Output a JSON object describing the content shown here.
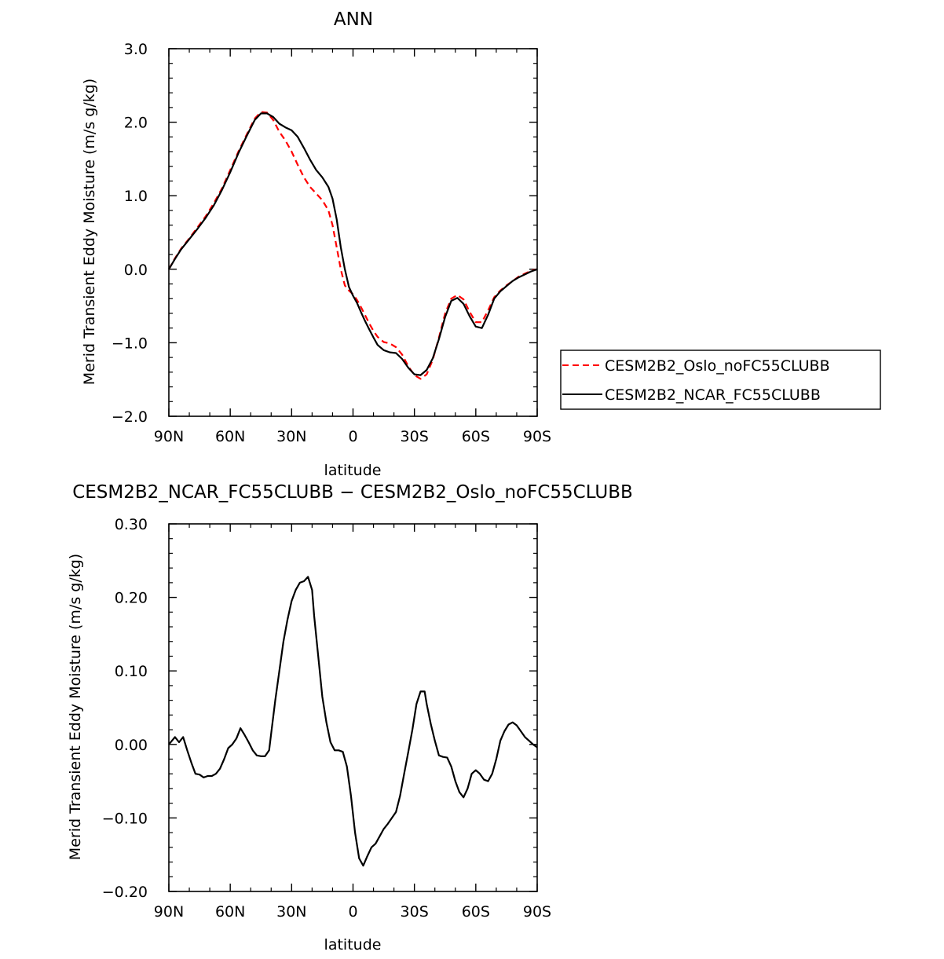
{
  "colors": {
    "series_oslo": "#ff0000",
    "series_ncar": "#000000",
    "axis": "#000000"
  },
  "chart_data": [
    {
      "type": "line",
      "title": "ANN",
      "xlabel": "latitude",
      "ylabel": "Merid Transient Eddy Moisture (m/s g/kg)",
      "xlim": [
        90,
        -90
      ],
      "ylim": [
        -2.0,
        3.0
      ],
      "xticks": [
        {
          "v": 90,
          "label": "90N"
        },
        {
          "v": 60,
          "label": "60N"
        },
        {
          "v": 30,
          "label": "30N"
        },
        {
          "v": 0,
          "label": "0"
        },
        {
          "v": -30,
          "label": "30S"
        },
        {
          "v": -60,
          "label": "60S"
        },
        {
          "v": -90,
          "label": "90S"
        }
      ],
      "yticks": [
        {
          "v": 3.0,
          "label": "3.0"
        },
        {
          "v": 2.0,
          "label": "2.0"
        },
        {
          "v": 1.0,
          "label": "1.0"
        },
        {
          "v": 0.0,
          "label": "0.0"
        },
        {
          "v": -1.0,
          "label": "−1.0"
        },
        {
          "v": -2.0,
          "label": "−2.0"
        }
      ],
      "legend": {
        "placement": "right"
      },
      "series": [
        {
          "name": "CESM2B2_Oslo_noFC55CLUBB",
          "color": "#ff0000",
          "dash": true,
          "x": [
            90,
            87,
            84,
            80,
            76,
            72,
            68,
            64,
            60,
            56,
            52,
            48,
            45,
            42,
            39,
            36,
            33,
            30,
            27,
            24,
            21,
            18,
            15,
            12,
            10,
            8,
            6,
            4,
            2,
            0,
            -2,
            -4,
            -6,
            -8,
            -10,
            -12,
            -15,
            -18,
            -21,
            -24,
            -27,
            -30,
            -33,
            -36,
            -39,
            -42,
            -45,
            -48,
            -51,
            -54,
            -57,
            -60,
            -63,
            -66,
            -69,
            -72,
            -75,
            -78,
            -81,
            -84,
            -87,
            -90
          ],
          "y": [
            0.0,
            0.15,
            0.28,
            0.42,
            0.57,
            0.72,
            0.9,
            1.1,
            1.35,
            1.6,
            1.83,
            2.05,
            2.14,
            2.13,
            2.03,
            1.87,
            1.75,
            1.6,
            1.42,
            1.25,
            1.12,
            1.03,
            0.94,
            0.8,
            0.6,
            0.3,
            0.0,
            -0.22,
            -0.29,
            -0.34,
            -0.42,
            -0.52,
            -0.63,
            -0.74,
            -0.84,
            -0.92,
            -0.99,
            -1.01,
            -1.06,
            -1.16,
            -1.32,
            -1.44,
            -1.49,
            -1.43,
            -1.23,
            -0.93,
            -0.6,
            -0.4,
            -0.35,
            -0.41,
            -0.58,
            -0.72,
            -0.72,
            -0.56,
            -0.38,
            -0.29,
            -0.22,
            -0.16,
            -0.1,
            -0.06,
            -0.02,
            0.0
          ]
        },
        {
          "name": "CESM2B2_NCAR_FC55CLUBB",
          "color": "#000000",
          "dash": false,
          "x": [
            90,
            87,
            84,
            80,
            76,
            72,
            68,
            64,
            60,
            56,
            52,
            48,
            45,
            42,
            39,
            36,
            33,
            30,
            27,
            24,
            21,
            18,
            15,
            12,
            10,
            8,
            6,
            4,
            2,
            0,
            -2,
            -4,
            -6,
            -8,
            -10,
            -12,
            -15,
            -18,
            -21,
            -24,
            -27,
            -30,
            -33,
            -36,
            -39,
            -42,
            -45,
            -48,
            -51,
            -54,
            -57,
            -60,
            -63,
            -66,
            -69,
            -72,
            -75,
            -78,
            -81,
            -84,
            -87,
            -90
          ],
          "y": [
            0.0,
            0.14,
            0.27,
            0.41,
            0.55,
            0.7,
            0.87,
            1.08,
            1.32,
            1.58,
            1.81,
            2.03,
            2.12,
            2.12,
            2.07,
            1.98,
            1.93,
            1.89,
            1.8,
            1.65,
            1.49,
            1.35,
            1.25,
            1.12,
            0.96,
            0.68,
            0.3,
            0.0,
            -0.24,
            -0.36,
            -0.46,
            -0.59,
            -0.71,
            -0.82,
            -0.93,
            -1.03,
            -1.1,
            -1.13,
            -1.14,
            -1.22,
            -1.34,
            -1.43,
            -1.44,
            -1.37,
            -1.21,
            -0.95,
            -0.65,
            -0.43,
            -0.39,
            -0.47,
            -0.64,
            -0.78,
            -0.8,
            -0.62,
            -0.4,
            -0.3,
            -0.23,
            -0.16,
            -0.11,
            -0.07,
            -0.03,
            0.0
          ]
        }
      ]
    },
    {
      "type": "line",
      "title": "CESM2B2_NCAR_FC55CLUBB − CESM2B2_Oslo_noFC55CLUBB",
      "xlabel": "latitude",
      "ylabel": "Merid Transient Eddy Moisture (m/s g/kg)",
      "xlim": [
        90,
        -90
      ],
      "ylim": [
        -0.2,
        0.3
      ],
      "xticks": [
        {
          "v": 90,
          "label": "90N"
        },
        {
          "v": 60,
          "label": "60N"
        },
        {
          "v": 30,
          "label": "30N"
        },
        {
          "v": 0,
          "label": "0"
        },
        {
          "v": -30,
          "label": "30S"
        },
        {
          "v": -60,
          "label": "60S"
        },
        {
          "v": -90,
          "label": "90S"
        }
      ],
      "yticks": [
        {
          "v": 0.3,
          "label": "0.30"
        },
        {
          "v": 0.2,
          "label": "0.20"
        },
        {
          "v": 0.1,
          "label": "0.10"
        },
        {
          "v": 0.0,
          "label": "0.00"
        },
        {
          "v": -0.1,
          "label": "−0.10"
        },
        {
          "v": -0.2,
          "label": "−0.20"
        }
      ],
      "series": [
        {
          "color": "#000000",
          "dash": false,
          "x": [
            90,
            87,
            85,
            83,
            81,
            79,
            77,
            75,
            73,
            71,
            69,
            67,
            65,
            63,
            61,
            59,
            57,
            55,
            53,
            51,
            49,
            47,
            45,
            43,
            41,
            40,
            38,
            36,
            34,
            32,
            30,
            28,
            26,
            24,
            22,
            20,
            19,
            17,
            15,
            13,
            11,
            9,
            7,
            5,
            3,
            1,
            -1,
            -3,
            -5,
            -7,
            -9,
            -11,
            -13,
            -15,
            -17,
            -19,
            -21,
            -23,
            -25,
            -27,
            -29,
            -31,
            -33,
            -35,
            -36,
            -38,
            -40,
            -42,
            -44,
            -46,
            -48,
            -50,
            -52,
            -54,
            -56,
            -58,
            -60,
            -62,
            -64,
            -66,
            -68,
            -70,
            -72,
            -74,
            -76,
            -78,
            -80,
            -82,
            -84,
            -86,
            -88,
            -90
          ],
          "y": [
            0.0,
            0.01,
            0.003,
            0.01,
            -0.008,
            -0.025,
            -0.04,
            -0.041,
            -0.045,
            -0.043,
            -0.043,
            -0.04,
            -0.033,
            -0.02,
            -0.005,
            0.0,
            0.008,
            0.022,
            0.013,
            0.003,
            -0.008,
            -0.015,
            -0.016,
            -0.016,
            -0.008,
            0.015,
            0.06,
            0.1,
            0.14,
            0.17,
            0.195,
            0.21,
            0.22,
            0.222,
            0.228,
            0.21,
            0.175,
            0.12,
            0.065,
            0.03,
            0.003,
            -0.008,
            -0.008,
            -0.01,
            -0.03,
            -0.07,
            -0.12,
            -0.155,
            -0.165,
            -0.152,
            -0.14,
            -0.135,
            -0.125,
            -0.115,
            -0.108,
            -0.1,
            -0.092,
            -0.07,
            -0.04,
            -0.01,
            0.02,
            0.055,
            0.072,
            0.072,
            0.055,
            0.028,
            0.005,
            -0.015,
            -0.017,
            -0.018,
            -0.03,
            -0.05,
            -0.065,
            -0.072,
            -0.06,
            -0.04,
            -0.035,
            -0.04,
            -0.048,
            -0.05,
            -0.04,
            -0.02,
            0.005,
            0.018,
            0.027,
            0.03,
            0.026,
            0.018,
            0.01,
            0.005,
            0.0,
            -0.004
          ]
        }
      ]
    }
  ]
}
